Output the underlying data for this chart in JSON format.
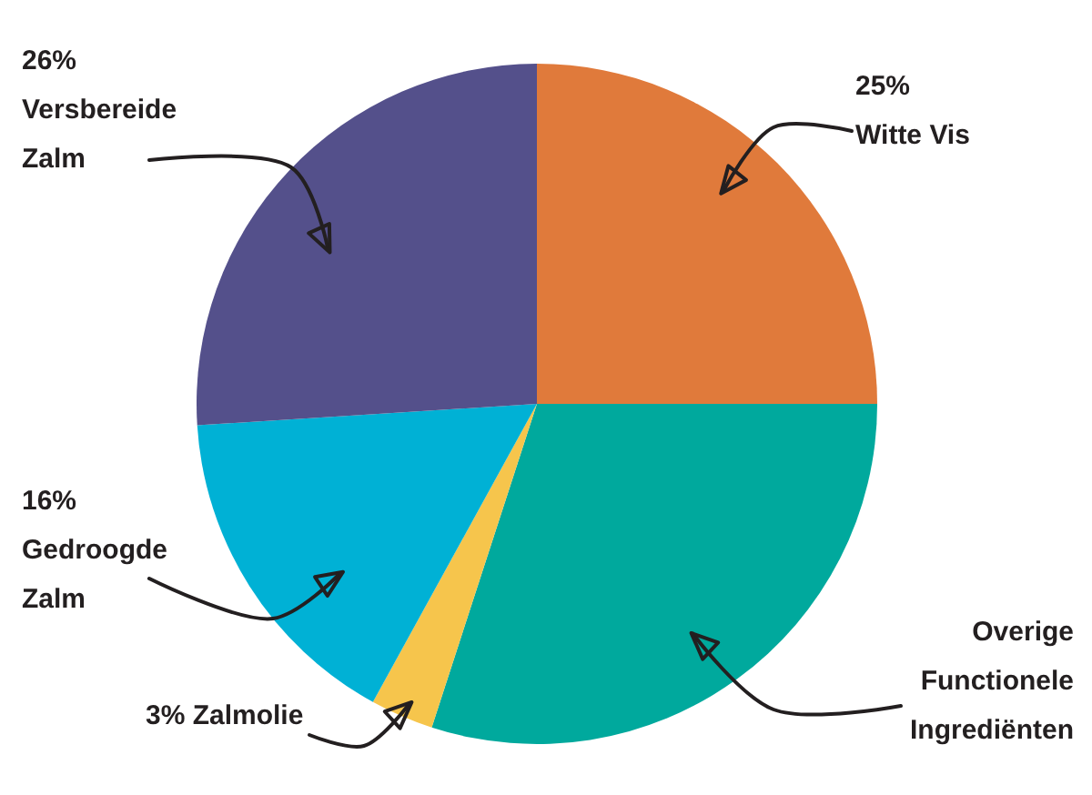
{
  "chart_data": {
    "type": "pie",
    "categories": [
      "Witte Vis",
      "Overige Functionele Ingrediënten",
      "Zalmolie",
      "Gedroogde Zalm",
      "Versbereide Zalm"
    ],
    "values": [
      25,
      30,
      3,
      16,
      26
    ],
    "value_labels": [
      "25%",
      null,
      "3%",
      "16%",
      "26%"
    ],
    "colors": [
      "#e07a3b",
      "#00a99d",
      "#f6c54c",
      "#00b1d5",
      "#54508b"
    ]
  }
}
